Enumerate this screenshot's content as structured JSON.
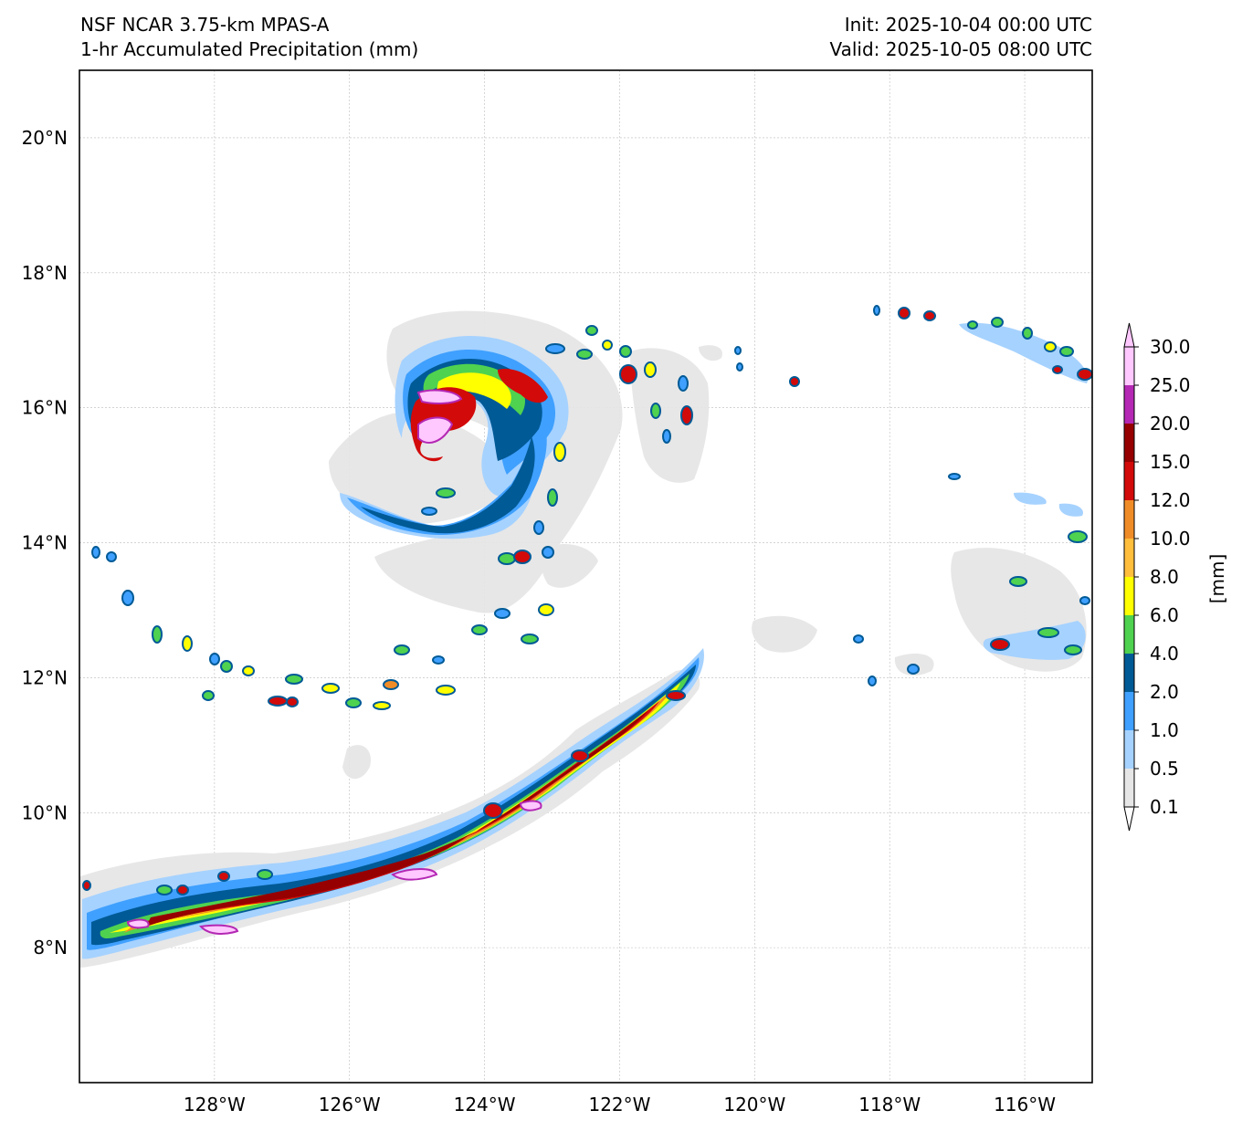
{
  "header": {
    "model": "NSF NCAR 3.75-km MPAS-A",
    "field": "1-hr Accumulated Precipitation (mm)",
    "init": "Init: 2025-10-04 00:00 UTC",
    "valid": "Valid: 2025-10-05 08:00 UTC"
  },
  "map": {
    "lon_range": [
      -130,
      -115
    ],
    "lat_range": [
      6,
      21
    ],
    "lat_ticks": [
      {
        "value": 8,
        "label": "8°N"
      },
      {
        "value": 10,
        "label": "10°N"
      },
      {
        "value": 12,
        "label": "12°N"
      },
      {
        "value": 14,
        "label": "14°N"
      },
      {
        "value": 16,
        "label": "16°N"
      },
      {
        "value": 18,
        "label": "18°N"
      },
      {
        "value": 20,
        "label": "20°N"
      }
    ],
    "lon_ticks": [
      {
        "value": -128,
        "label": "128°W"
      },
      {
        "value": -126,
        "label": "126°W"
      },
      {
        "value": -124,
        "label": "124°W"
      },
      {
        "value": -122,
        "label": "122°W"
      },
      {
        "value": -120,
        "label": "120°W"
      },
      {
        "value": -118,
        "label": "118°W"
      },
      {
        "value": -116,
        "label": "116°W"
      }
    ]
  },
  "colorbar": {
    "unit_label": "[mm]",
    "levels": [
      "0.1",
      "0.5",
      "1.0",
      "2.0",
      "4.0",
      "6.0",
      "8.0",
      "10.0",
      "12.0",
      "15.0",
      "20.0",
      "25.0",
      "30.0"
    ],
    "colors": [
      "#e6e6e6",
      "#a6d2ff",
      "#3fa0ff",
      "#005a96",
      "#4fd24f",
      "#ffff00",
      "#ffbe3c",
      "#f08c28",
      "#d20a0a",
      "#960000",
      "#b428b4",
      "#ffc8ff"
    ],
    "extend_under_color": "#ffffff",
    "extend_over_color": "#ffc8ff"
  }
}
